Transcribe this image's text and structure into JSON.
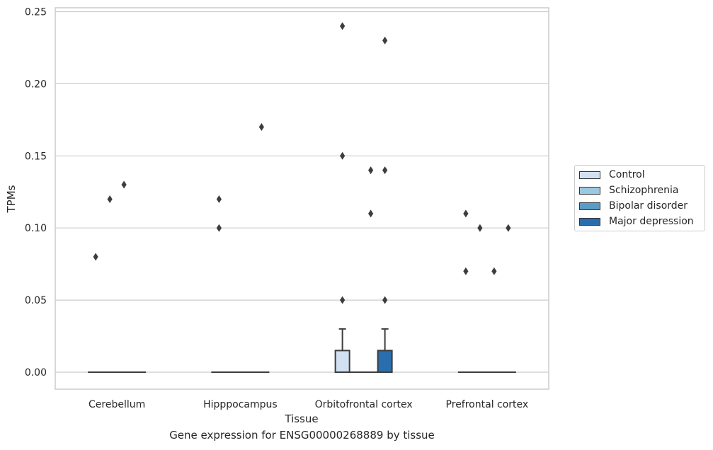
{
  "chart_data": {
    "type": "boxplot",
    "xlabel": "Tissue",
    "ylabel": "TPMs",
    "caption": "Gene expression for ENSG00000268889 by tissue",
    "ylim": [
      -0.012,
      0.252
    ],
    "yticks": [
      "0.00",
      "0.05",
      "0.10",
      "0.15",
      "0.20",
      "0.25"
    ],
    "ytick_values": [
      0,
      0.05,
      0.1,
      0.15,
      0.2,
      0.25
    ],
    "grid": "horizontal",
    "legend_position": "right",
    "categories": [
      "Cerebellum",
      "Hipppocampus",
      "Orbitofrontal cortex",
      "Prefrontal cortex"
    ],
    "series": [
      {
        "name": "Control",
        "color": "#d1e1f1",
        "boxes": [
          {
            "q1": 0,
            "median": 0,
            "q3": 0,
            "whisker_low": 0,
            "whisker_high": 0,
            "outliers": [
              0.08
            ]
          },
          {
            "q1": 0,
            "median": 0,
            "q3": 0,
            "whisker_low": 0,
            "whisker_high": 0,
            "outliers": [
              0.1,
              0.12
            ]
          },
          {
            "q1": 0,
            "median": 0,
            "q3": 0.015,
            "whisker_low": 0,
            "whisker_high": 0.03,
            "outliers": [
              0.05,
              0.15,
              0.24
            ]
          },
          {
            "q1": 0,
            "median": 0,
            "q3": 0,
            "whisker_low": 0,
            "whisker_high": 0,
            "outliers": [
              0.07,
              0.11
            ]
          }
        ]
      },
      {
        "name": "Schizophrenia",
        "color": "#9ac8e0",
        "boxes": [
          {
            "q1": 0,
            "median": 0,
            "q3": 0,
            "whisker_low": 0,
            "whisker_high": 0,
            "outliers": [
              0.12
            ]
          },
          {
            "q1": 0,
            "median": 0,
            "q3": 0,
            "whisker_low": 0,
            "whisker_high": 0,
            "outliers": []
          },
          {
            "q1": 0,
            "median": 0,
            "q3": 0,
            "whisker_low": 0,
            "whisker_high": 0,
            "outliers": []
          },
          {
            "q1": 0,
            "median": 0,
            "q3": 0,
            "whisker_low": 0,
            "whisker_high": 0,
            "outliers": [
              0.1
            ]
          }
        ]
      },
      {
        "name": "Bipolar disorder",
        "color": "#5a9cc9",
        "boxes": [
          {
            "q1": 0,
            "median": 0,
            "q3": 0,
            "whisker_low": 0,
            "whisker_high": 0,
            "outliers": [
              0.13
            ]
          },
          {
            "q1": 0,
            "median": 0,
            "q3": 0,
            "whisker_low": 0,
            "whisker_high": 0,
            "outliers": []
          },
          {
            "q1": 0,
            "median": 0,
            "q3": 0,
            "whisker_low": 0,
            "whisker_high": 0,
            "outliers": [
              0.11,
              0.14
            ]
          },
          {
            "q1": 0,
            "median": 0,
            "q3": 0,
            "whisker_low": 0,
            "whisker_high": 0,
            "outliers": [
              0.07
            ]
          }
        ]
      },
      {
        "name": "Major depression",
        "color": "#2a6ead",
        "boxes": [
          {
            "q1": 0,
            "median": 0,
            "q3": 0,
            "whisker_low": 0,
            "whisker_high": 0,
            "outliers": []
          },
          {
            "q1": 0,
            "median": 0,
            "q3": 0,
            "whisker_low": 0,
            "whisker_high": 0,
            "outliers": [
              0.17
            ]
          },
          {
            "q1": 0,
            "median": 0,
            "q3": 0.015,
            "whisker_low": 0,
            "whisker_high": 0.03,
            "outliers": [
              0.05,
              0.14,
              0.23
            ]
          },
          {
            "q1": 0,
            "median": 0,
            "q3": 0,
            "whisker_low": 0,
            "whisker_high": 0,
            "outliers": [
              0.1
            ]
          }
        ]
      }
    ]
  }
}
